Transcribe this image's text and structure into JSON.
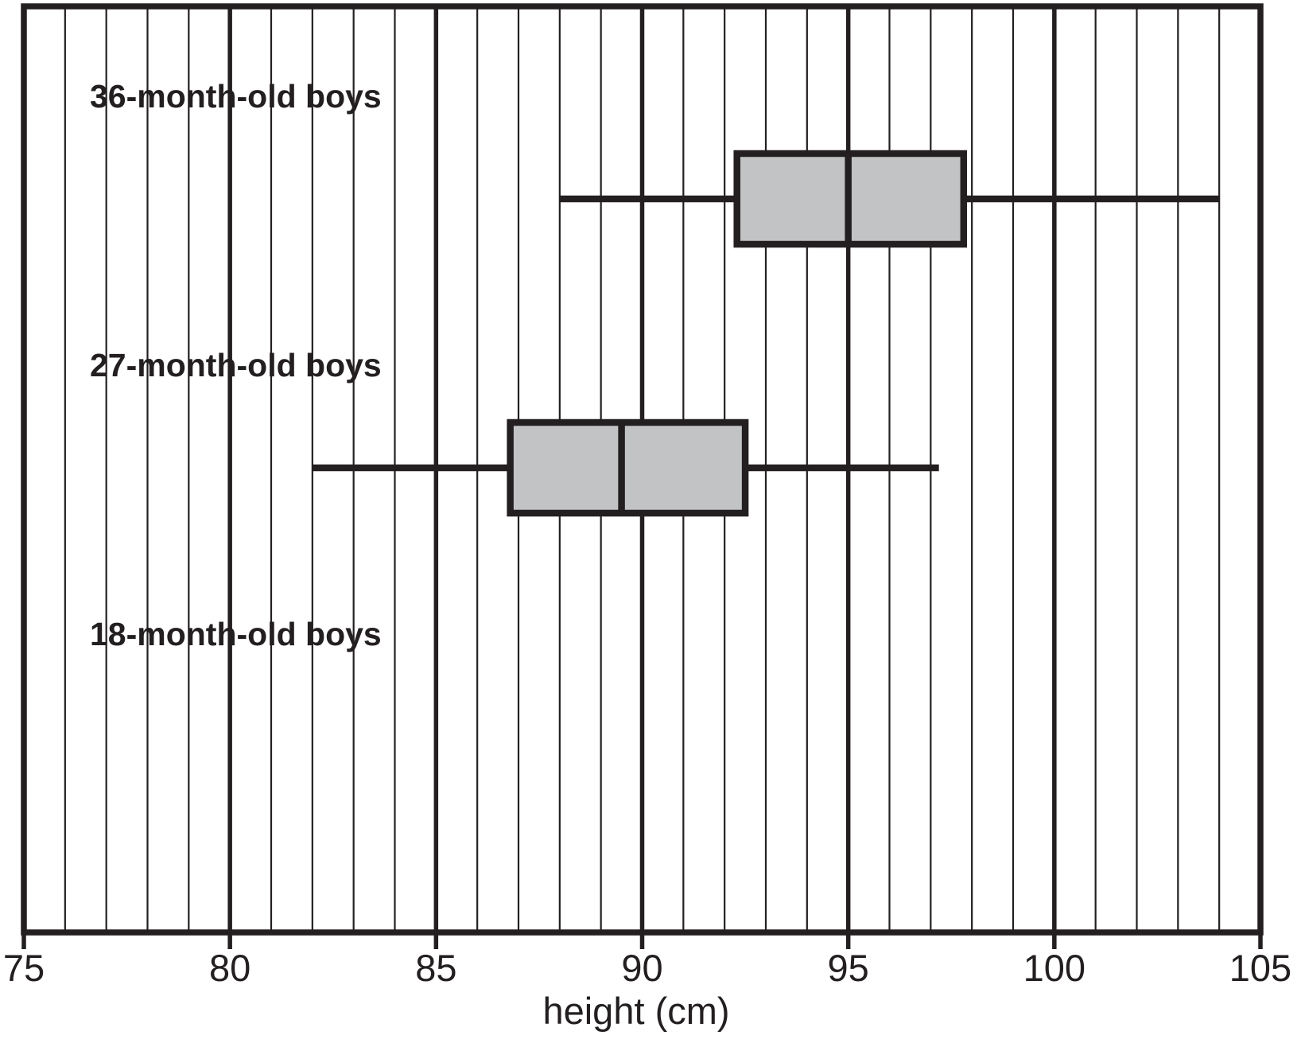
{
  "figure": {
    "background_color": "#ffffff",
    "ink_color": "#231f20",
    "box_fill_color": "#c2c3c5"
  },
  "chart_data": {
    "type": "boxplot",
    "orientation": "horizontal",
    "title": "",
    "xlabel": "height (cm)",
    "xlim": [
      75,
      105
    ],
    "x_major_ticks": [
      75,
      80,
      85,
      90,
      95,
      100,
      105
    ],
    "x_major_tick_labels": [
      "75",
      "80",
      "85",
      "90",
      "95",
      "100",
      "105"
    ],
    "x_minor_step": 1,
    "x_major_step": 5,
    "grid": "vertical gridlines: thin minor every 1 cm, thick major every 5 cm; full plot border",
    "legend": "none",
    "whisker_caps": false,
    "groups": [
      {
        "label": "36-month-old boys",
        "has_box": true,
        "five_number_summary": {
          "min": 88,
          "q1": 92.3,
          "median": 95,
          "q3": 97.8,
          "max": 104
        }
      },
      {
        "label": "27-month-old boys",
        "has_box": true,
        "five_number_summary": {
          "min": 82,
          "q1": 86.8,
          "median": 89.5,
          "q3": 92.5,
          "max": 97.2
        }
      },
      {
        "label": "18-month-old boys",
        "has_box": false,
        "five_number_summary": null
      }
    ]
  }
}
